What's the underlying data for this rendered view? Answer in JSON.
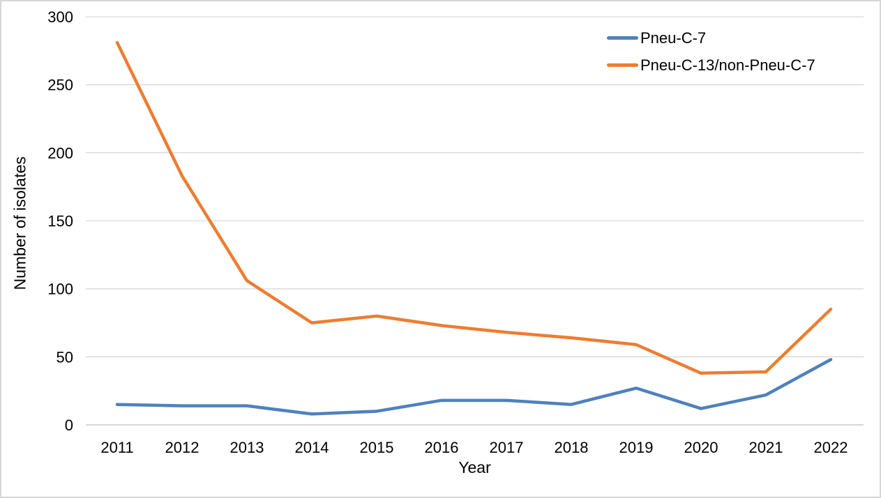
{
  "chart_data": {
    "type": "line",
    "categories": [
      "2011",
      "2012",
      "2013",
      "2014",
      "2015",
      "2016",
      "2017",
      "2018",
      "2019",
      "2020",
      "2021",
      "2022"
    ],
    "series": [
      {
        "name": "Pneu-C-7",
        "color": "#4F81BD",
        "values": [
          15,
          14,
          14,
          8,
          10,
          18,
          18,
          15,
          27,
          12,
          22,
          48
        ]
      },
      {
        "name": "Pneu-C-13/non-Pneu-C-7",
        "color": "#ED7D31",
        "values": [
          281,
          183,
          106,
          75,
          80,
          73,
          68,
          64,
          59,
          38,
          39,
          85
        ]
      }
    ],
    "xlabel": "Year",
    "ylabel": "Number of isolates",
    "ylim": [
      0,
      300
    ],
    "yticks": [
      0,
      50,
      100,
      150,
      200,
      250,
      300
    ],
    "grid": "horizontal",
    "legend_position": "top-right",
    "colors": {
      "gridline": "#D9D9D9",
      "zeroline": "#BFBFBF",
      "text": "#000000",
      "background": "#FFFFFF",
      "border": "#D6D6D6"
    }
  }
}
